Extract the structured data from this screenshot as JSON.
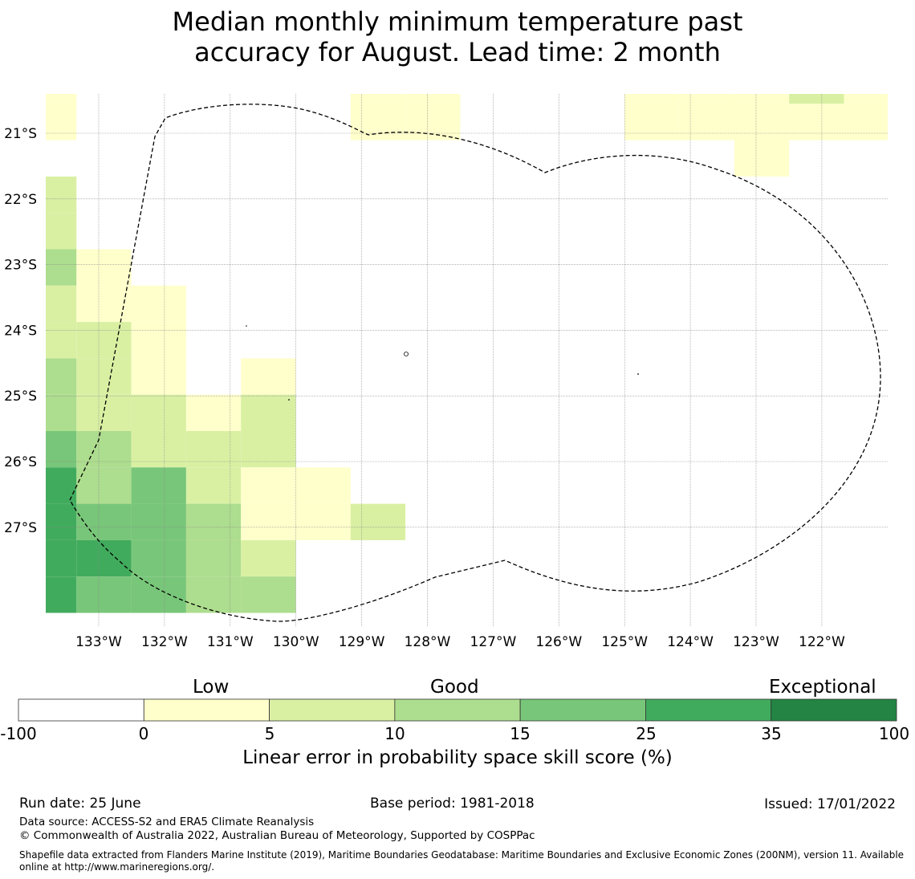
{
  "title_line1": "Median monthly minimum temperature past",
  "title_line2": "accuracy for August. Lead time: 2 month",
  "map": {
    "lon_labels": [
      "133°W",
      "132°W",
      "131°W",
      "130°W",
      "129°W",
      "128°W",
      "127°W",
      "126°W",
      "125°W",
      "124°W",
      "123°W",
      "122°W"
    ],
    "lat_labels": [
      "21°S",
      "22°S",
      "23°S",
      "24°S",
      "25°S",
      "26°S",
      "27°S"
    ],
    "boundary_style": "dashed",
    "cells": [
      {
        "row": 0,
        "col": 0,
        "cat": 1
      },
      {
        "row": 0,
        "col": 6,
        "cat": 1
      },
      {
        "row": 0,
        "col": 7,
        "cat": 1
      },
      {
        "row": 0,
        "col": 11,
        "cat": 1
      },
      {
        "row": 0,
        "col": 12,
        "cat": 1
      },
      {
        "row": 0,
        "col": 13,
        "cat": 1
      },
      {
        "row": 0,
        "col": 14,
        "cat": 2
      },
      {
        "row": 0,
        "col": 15,
        "cat": 1
      },
      {
        "row": 1,
        "col": 0,
        "cat": 1
      },
      {
        "row": 1,
        "col": 6,
        "cat": 1
      },
      {
        "row": 1,
        "col": 7,
        "cat": 1
      },
      {
        "row": 1,
        "col": 11,
        "cat": 1
      },
      {
        "row": 1,
        "col": 12,
        "cat": 1
      },
      {
        "row": 1,
        "col": 13,
        "cat": 1
      },
      {
        "row": 1,
        "col": 14,
        "cat": 1
      },
      {
        "row": 1,
        "col": 15,
        "cat": 1
      },
      {
        "row": 2,
        "col": 13,
        "cat": 1
      },
      {
        "row": 3,
        "col": 0,
        "cat": 2
      },
      {
        "row": 4,
        "col": 0,
        "cat": 2
      },
      {
        "row": 5,
        "col": 0,
        "cat": 3
      },
      {
        "row": 5,
        "col": 1,
        "cat": 1
      },
      {
        "row": 6,
        "col": 0,
        "cat": 2
      },
      {
        "row": 6,
        "col": 1,
        "cat": 1
      },
      {
        "row": 6,
        "col": 2,
        "cat": 1
      },
      {
        "row": 7,
        "col": 0,
        "cat": 2
      },
      {
        "row": 7,
        "col": 1,
        "cat": 2
      },
      {
        "row": 7,
        "col": 2,
        "cat": 1
      },
      {
        "row": 8,
        "col": 0,
        "cat": 3
      },
      {
        "row": 8,
        "col": 1,
        "cat": 2
      },
      {
        "row": 8,
        "col": 2,
        "cat": 1
      },
      {
        "row": 8,
        "col": 4,
        "cat": 1
      },
      {
        "row": 9,
        "col": 0,
        "cat": 3
      },
      {
        "row": 9,
        "col": 1,
        "cat": 2
      },
      {
        "row": 9,
        "col": 2,
        "cat": 2
      },
      {
        "row": 9,
        "col": 3,
        "cat": 1
      },
      {
        "row": 9,
        "col": 4,
        "cat": 2
      },
      {
        "row": 10,
        "col": 0,
        "cat": 4
      },
      {
        "row": 10,
        "col": 1,
        "cat": 3
      },
      {
        "row": 10,
        "col": 2,
        "cat": 2
      },
      {
        "row": 10,
        "col": 3,
        "cat": 2
      },
      {
        "row": 10,
        "col": 4,
        "cat": 2
      },
      {
        "row": 11,
        "col": 0,
        "cat": 5
      },
      {
        "row": 11,
        "col": 1,
        "cat": 3
      },
      {
        "row": 11,
        "col": 2,
        "cat": 4
      },
      {
        "row": 11,
        "col": 3,
        "cat": 2
      },
      {
        "row": 11,
        "col": 4,
        "cat": 1
      },
      {
        "row": 11,
        "col": 5,
        "cat": 1
      },
      {
        "row": 12,
        "col": 0,
        "cat": 5
      },
      {
        "row": 12,
        "col": 1,
        "cat": 4
      },
      {
        "row": 12,
        "col": 2,
        "cat": 4
      },
      {
        "row": 12,
        "col": 3,
        "cat": 3
      },
      {
        "row": 12,
        "col": 4,
        "cat": 1
      },
      {
        "row": 12,
        "col": 5,
        "cat": 1
      },
      {
        "row": 12,
        "col": 6,
        "cat": 2
      },
      {
        "row": 13,
        "col": 0,
        "cat": 5
      },
      {
        "row": 13,
        "col": 1,
        "cat": 5
      },
      {
        "row": 13,
        "col": 2,
        "cat": 4
      },
      {
        "row": 13,
        "col": 3,
        "cat": 3
      },
      {
        "row": 13,
        "col": 4,
        "cat": 2
      },
      {
        "row": 14,
        "col": 0,
        "cat": 5
      },
      {
        "row": 14,
        "col": 1,
        "cat": 4
      },
      {
        "row": 14,
        "col": 2,
        "cat": 4
      },
      {
        "row": 14,
        "col": 3,
        "cat": 3
      },
      {
        "row": 14,
        "col": 4,
        "cat": 3
      }
    ]
  },
  "colorbar": {
    "category_labels": [
      "Low",
      "Good",
      "Exceptional"
    ],
    "ticks": [
      "-100",
      "0",
      "5",
      "10",
      "15",
      "25",
      "35",
      "100"
    ],
    "colors": [
      "#ffffff",
      "#ffffcc",
      "#d9f0a3",
      "#addd8e",
      "#78c679",
      "#41ab5d",
      "#238443"
    ],
    "label": "Linear error in probability space skill score (%)"
  },
  "footer": {
    "run_date": "Run date: 25 June",
    "base_period": "Base period: 1981-2018",
    "issued": "Issued: 17/01/2022",
    "data_source": "Data source: ACCESS-S2 and ERA5 Climate Reanalysis",
    "copyright": "© Commonwealth of Australia 2022, Australian Bureau of Meteorology, Supported by COSPPac",
    "shapefile": "Shapefile data extracted from Flanders Marine Institute (2019), Maritime Boundaries Geodatabase: Maritime Boundaries and Exclusive Economic Zones (200NM), version 11. Available online at http://www.marineregions.org/."
  }
}
